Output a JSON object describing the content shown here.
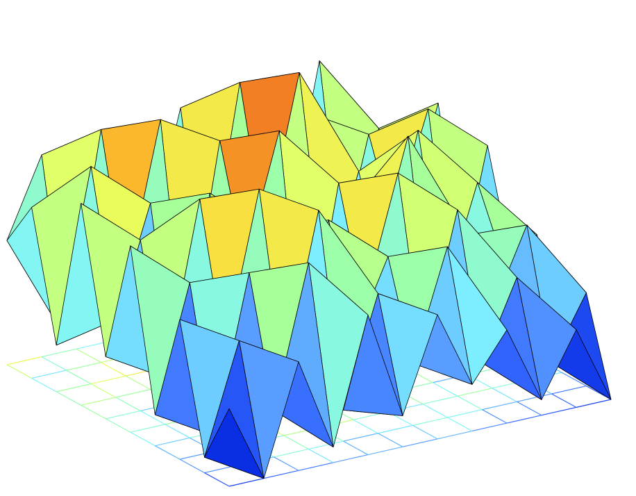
{
  "chart_data": {
    "type": "surface",
    "floor_contours": true,
    "colormap": [
      "#00008f",
      "#0022dd",
      "#3366ff",
      "#5aa0ff",
      "#7ff5ff",
      "#a0ffa0",
      "#e8ff60",
      "#ffd030",
      "#f07020",
      "#dd2200",
      "#780000"
    ],
    "z": [
      [
        0.55,
        0.8,
        0.3,
        0.7,
        0.4,
        0.85,
        0.2,
        0.75,
        0.35,
        0.9,
        0.45,
        0.6
      ],
      [
        0.7,
        0.25,
        0.9,
        0.35,
        0.75,
        0.3,
        0.95,
        0.4,
        0.8,
        0.25,
        0.7,
        0.35
      ],
      [
        0.3,
        0.85,
        0.45,
        0.95,
        0.2,
        0.7,
        0.5,
        1.0,
        0.3,
        0.75,
        0.4,
        0.8
      ],
      [
        0.8,
        0.4,
        0.75,
        0.25,
        0.9,
        0.45,
        0.85,
        0.35,
        0.7,
        0.5,
        0.85,
        0.3
      ],
      [
        0.35,
        0.7,
        0.2,
        0.8,
        0.55,
        0.95,
        0.3,
        0.65,
        0.4,
        0.85,
        0.25,
        0.75
      ],
      [
        0.75,
        0.3,
        0.85,
        0.45,
        0.7,
        0.2,
        0.8,
        0.5,
        0.9,
        0.35,
        0.7,
        0.4
      ],
      [
        0.25,
        0.65,
        0.4,
        0.9,
        0.3,
        0.75,
        0.45,
        0.85,
        0.25,
        0.6,
        0.5,
        0.55
      ],
      [
        0.6,
        0.2,
        0.7,
        0.35,
        0.85,
        0.4,
        0.65,
        0.3,
        0.75,
        0.4,
        0.65,
        0.3
      ],
      [
        0.2,
        0.55,
        0.3,
        0.75,
        0.25,
        0.6,
        0.35,
        0.7,
        0.3,
        0.55,
        0.25,
        0.45
      ],
      [
        0.4,
        0.15,
        0.5,
        0.2,
        0.6,
        0.25,
        0.55,
        0.3,
        0.45,
        0.2,
        0.4,
        0.15
      ]
    ]
  }
}
